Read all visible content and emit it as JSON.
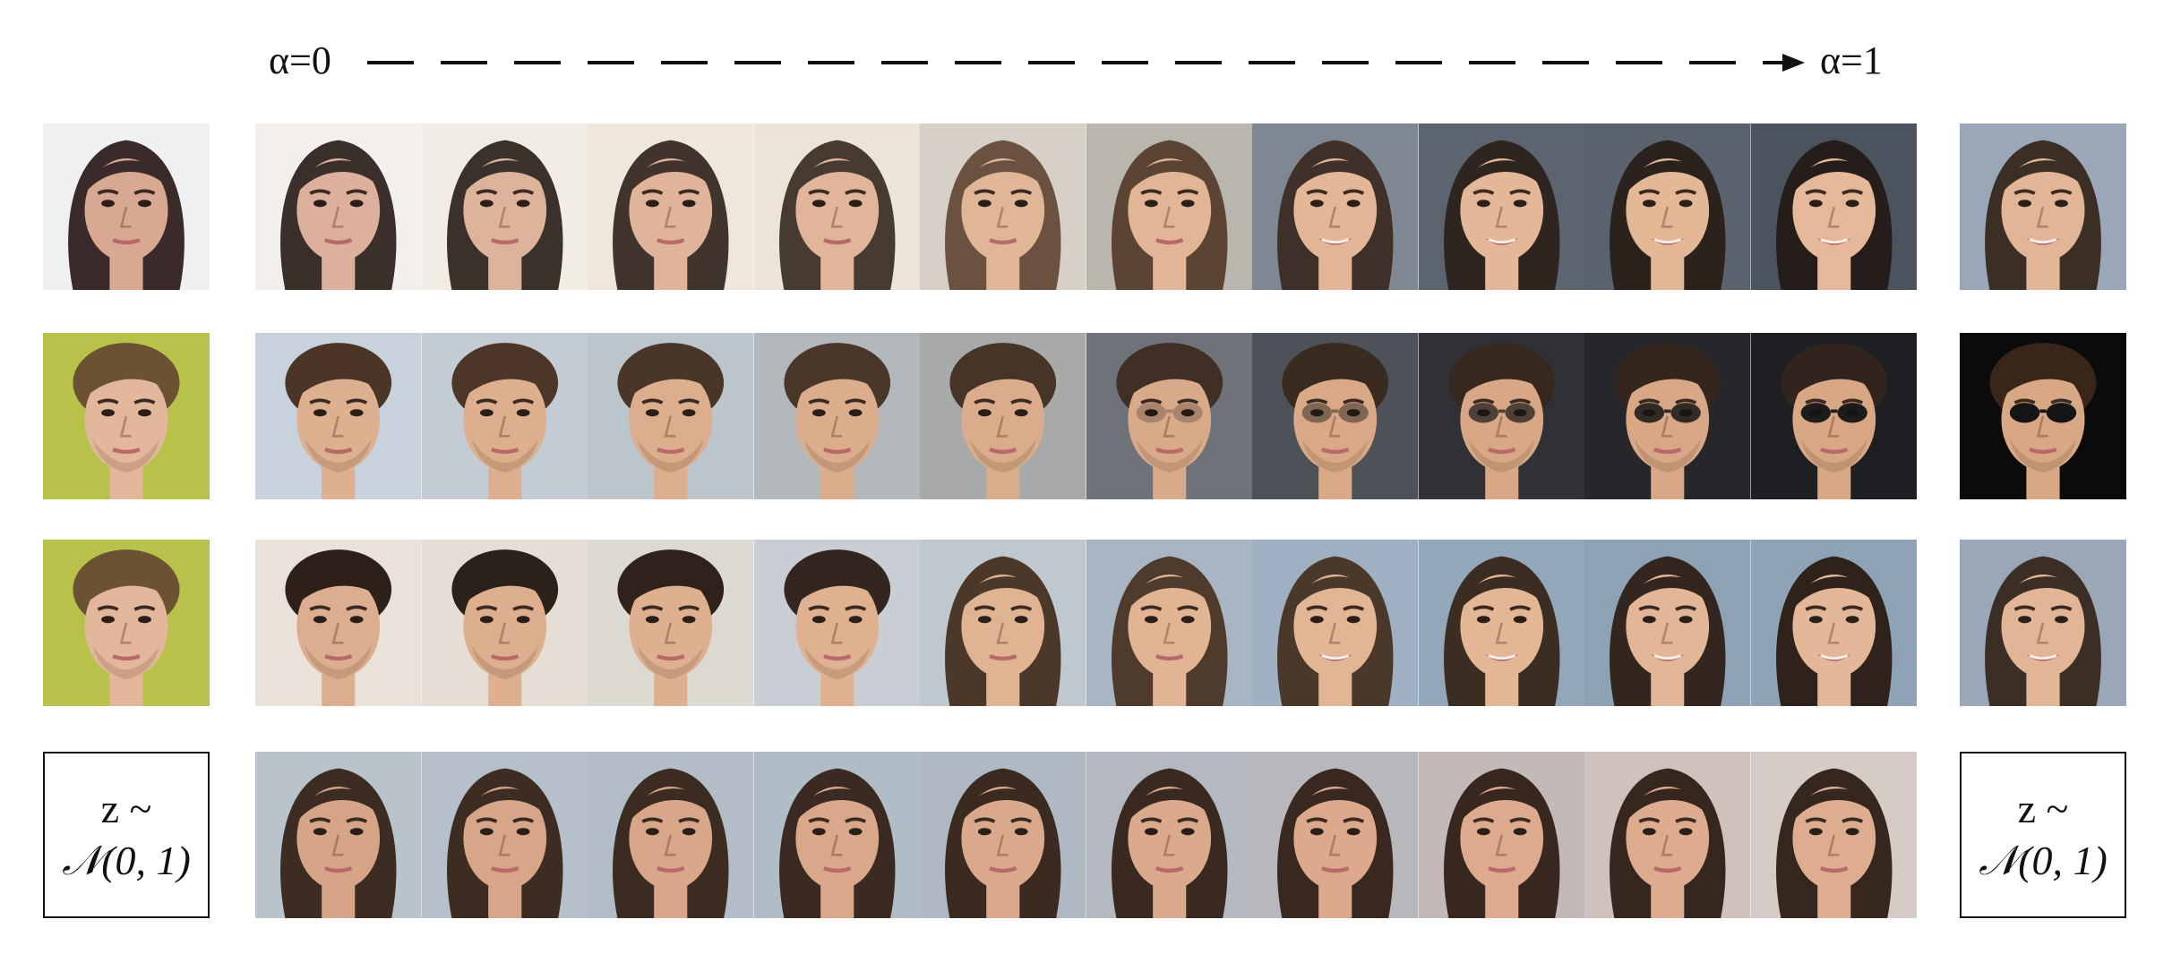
{
  "header": {
    "alpha_start": "α=0",
    "alpha_end": "α=1"
  },
  "noise_label": {
    "line1": "z ~",
    "line2": "𝒩(0, 1)"
  },
  "rows": [
    {
      "left": {
        "type": "photo",
        "skin": "#d8a892",
        "hair": "#3a2a2a",
        "bg": "#eef0f2",
        "sex": "f"
      },
      "right": {
        "type": "photo",
        "skin": "#e3b597",
        "hair": "#3b2e25",
        "bg": "#9aa7b8",
        "sex": "f",
        "smile": true
      },
      "cells": [
        {
          "skin": "#dcb09c",
          "hair": "#3a2f2b",
          "bg": "#f2efec",
          "sex": "f"
        },
        {
          "skin": "#ddb39c",
          "hair": "#3b302b",
          "bg": "#f1ece6",
          "sex": "f"
        },
        {
          "skin": "#dfb49b",
          "hair": "#40342d",
          "bg": "#efe6dc",
          "sex": "f"
        },
        {
          "skin": "#e0b599",
          "hair": "#473a30",
          "bg": "#ece4d8",
          "sex": "f"
        },
        {
          "skin": "#e0b697",
          "hair": "#6b5240",
          "bg": "#d7d0c6",
          "sex": "f"
        },
        {
          "skin": "#e1b596",
          "hair": "#5b4433",
          "bg": "#b9b6b0",
          "sex": "f"
        },
        {
          "skin": "#e2b696",
          "hair": "#3f3129",
          "bg": "#7f8892",
          "sex": "f",
          "smile": true
        },
        {
          "skin": "#e3b797",
          "hair": "#2f2520",
          "bg": "#5c6470",
          "sex": "f",
          "smile": true
        },
        {
          "skin": "#e4b796",
          "hair": "#2b221d",
          "bg": "#59626d",
          "sex": "f",
          "smile": true
        },
        {
          "skin": "#e4b898",
          "hair": "#251d19",
          "bg": "#4a535e",
          "sex": "f",
          "smile": true
        }
      ]
    },
    {
      "left": {
        "type": "photo",
        "skin": "#e3b79b",
        "hair": "#6b5233",
        "bg": "#b8c24a",
        "sex": "m"
      },
      "right": {
        "type": "photo",
        "skin": "#d8a784",
        "hair": "#3a2519",
        "bg": "#0b0b0b",
        "sex": "m",
        "glasses": true
      },
      "cells": [
        {
          "skin": "#ddb08f",
          "hair": "#4a3526",
          "bg": "#c7d2dc",
          "sex": "m"
        },
        {
          "skin": "#ddaf8e",
          "hair": "#4b3627",
          "bg": "#c3ccd4",
          "sex": "m"
        },
        {
          "skin": "#dcae8d",
          "hair": "#4a3628",
          "bg": "#bcc5cc",
          "sex": "m"
        },
        {
          "skin": "#dbad8c",
          "hair": "#4a3729",
          "bg": "#b3b8bc",
          "sex": "m"
        },
        {
          "skin": "#daac8b",
          "hair": "#463427",
          "bg": "#a8aaa9",
          "sex": "m"
        },
        {
          "skin": "#d9aa89",
          "hair": "#3f2f24",
          "bg": "#6f7278",
          "sex": "m",
          "glasses": true,
          "glass_alpha": 0.25
        },
        {
          "skin": "#d9a987",
          "hair": "#3a2b21",
          "bg": "#4d5158",
          "sex": "m",
          "glasses": true,
          "glass_alpha": 0.45
        },
        {
          "skin": "#d8a886",
          "hair": "#37281f",
          "bg": "#2f3136",
          "sex": "m",
          "glasses": true,
          "glass_alpha": 0.7
        },
        {
          "skin": "#d8a785",
          "hair": "#34261d",
          "bg": "#25272b",
          "sex": "m",
          "glasses": true,
          "glass_alpha": 0.85
        },
        {
          "skin": "#d8a784",
          "hair": "#31241c",
          "bg": "#1d1f22",
          "sex": "m",
          "glasses": true,
          "glass_alpha": 0.95
        }
      ]
    },
    {
      "left": {
        "type": "photo",
        "skin": "#e3b79b",
        "hair": "#6b5233",
        "bg": "#b8c24a",
        "sex": "m"
      },
      "right": {
        "type": "photo",
        "skin": "#e3b597",
        "hair": "#3b2e25",
        "bg": "#9aa7b8",
        "sex": "f",
        "smile": true
      },
      "cells": [
        {
          "skin": "#dcae8f",
          "hair": "#2c2019",
          "bg": "#e8e2d8",
          "sex": "m"
        },
        {
          "skin": "#ddaf8f",
          "hair": "#2c201a",
          "bg": "#e5ded4",
          "sex": "m"
        },
        {
          "skin": "#deb090",
          "hair": "#2e221b",
          "bg": "#dcd8d2",
          "sex": "m"
        },
        {
          "skin": "#dfb191",
          "hair": "#33261e",
          "bg": "#c9ced4",
          "sex": "m"
        },
        {
          "skin": "#e0b393",
          "hair": "#4b3829",
          "bg": "#bfc7cf",
          "sex": "f"
        },
        {
          "skin": "#e1b494",
          "hair": "#4f3b2c",
          "bg": "#a9b5c2",
          "sex": "f"
        },
        {
          "skin": "#e2b595",
          "hair": "#4a382b",
          "bg": "#9fb0c2",
          "sex": "f",
          "smile": true
        },
        {
          "skin": "#e3b696",
          "hair": "#3c2d22",
          "bg": "#93a7bb",
          "sex": "f",
          "smile": true
        },
        {
          "skin": "#e3b697",
          "hair": "#33261e",
          "bg": "#8ea2b6",
          "sex": "f",
          "smile": true
        },
        {
          "skin": "#e4b798",
          "hair": "#2e221b",
          "bg": "#8fa3b7",
          "sex": "f",
          "smile": true
        }
      ]
    },
    {
      "left": {
        "type": "noise"
      },
      "right": {
        "type": "noise"
      },
      "cells": [
        {
          "skin": "#d6a487",
          "hair": "#3d2c22",
          "bg": "#b8c3cc",
          "sex": "f"
        },
        {
          "skin": "#d7a588",
          "hair": "#3c2c22",
          "bg": "#b5c0ca",
          "sex": "f"
        },
        {
          "skin": "#d8a689",
          "hair": "#3b2b21",
          "bg": "#b2bdc8",
          "sex": "f"
        },
        {
          "skin": "#d9a78a",
          "hair": "#3a2a21",
          "bg": "#b0bcc6",
          "sex": "f"
        },
        {
          "skin": "#daa88b",
          "hair": "#3a2a20",
          "bg": "#aeb9c4",
          "sex": "f"
        },
        {
          "skin": "#dba98c",
          "hair": "#392920",
          "bg": "#b4b8c0",
          "sex": "f"
        },
        {
          "skin": "#dca98c",
          "hair": "#38281f",
          "bg": "#b8b7bc",
          "sex": "f"
        },
        {
          "skin": "#ddaa8d",
          "hair": "#37271f",
          "bg": "#c3b9b8",
          "sex": "f"
        },
        {
          "skin": "#ddab8e",
          "hair": "#36271e",
          "bg": "#cfc2bd",
          "sex": "f"
        },
        {
          "skin": "#deac8f",
          "hair": "#35261e",
          "bg": "#d6cbc6",
          "sex": "f"
        }
      ]
    }
  ]
}
